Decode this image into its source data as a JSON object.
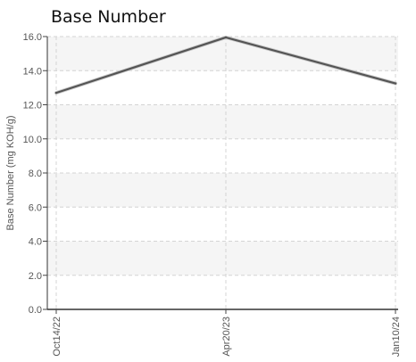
{
  "chart_data": {
    "type": "line",
    "title": "Base Number",
    "xlabel": "",
    "ylabel": "Base Number (mg KOH/g)",
    "categories": [
      "Oct14/22",
      "Apr20/23",
      "Jan10/24"
    ],
    "series": [
      {
        "values": [
          12.7,
          15.95,
          13.25
        ]
      }
    ],
    "ylim": [
      0,
      16
    ],
    "yticks": [
      "0.0",
      "2.0",
      "4.0",
      "6.0",
      "8.0",
      "10.0",
      "12.0",
      "14.0",
      "16.0"
    ],
    "grid": true,
    "line_color": "#555555",
    "band_color": "#f5f5f5",
    "grid_color": "#d4d4d4"
  }
}
